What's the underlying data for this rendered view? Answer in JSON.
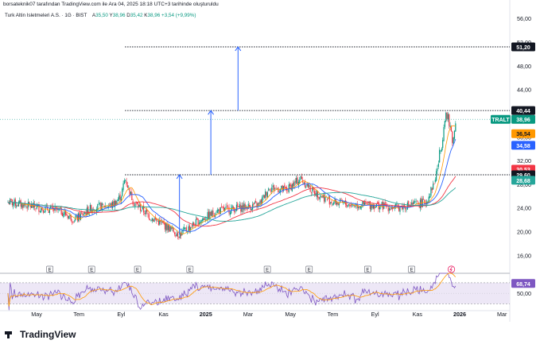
{
  "header": {
    "attribution": "borsateknik07 tarafından TradingView.com ile Ara 04, 2025 18:18 UTC+3 tarihinde oluşturuldu",
    "symbol_line": "Turk Altin Isletmeleri A.S. · 1G · BIST",
    "ohlc": {
      "a_label": "A",
      "a": "35,50",
      "y_label": "Y",
      "y": "38,96",
      "d_label": "D",
      "d": "35,42",
      "k_label": "K",
      "k": "38,96",
      "change": "+3,54 (+9,99%)"
    }
  },
  "brand": {
    "name": "TradingView"
  },
  "colors": {
    "up": "#089981",
    "down": "#f23645",
    "ma_red": "#f23645",
    "ma_blue": "#2962ff",
    "ma_teal": "#26a69a",
    "ma_purple": "#7e57c2",
    "rsi": "#7e57c2",
    "rsi_ma": "#ff9800",
    "arrow": "#2962ff",
    "rsi_band": "#ede7f6"
  },
  "chart_data": {
    "type": "candlestick",
    "price_axis": {
      "ticks": [
        "56,00",
        "52,00",
        "48,00",
        "44,00",
        "40,00",
        "36,00",
        "32,00",
        "28,00",
        "24,00",
        "20,00",
        "16,00"
      ],
      "range": [
        13.5,
        57.5
      ]
    },
    "time_axis": {
      "labels": [
        "May",
        "Tem",
        "Eyl",
        "Kas",
        "2025",
        "Mar",
        "May",
        "Tem",
        "Eyl",
        "Kas",
        "2026",
        "Mar"
      ],
      "bold": [
        "2025",
        "2026"
      ]
    },
    "price_labels": [
      {
        "text": "51,20",
        "value": 51.2,
        "style": "black"
      },
      {
        "text": "40,44",
        "value": 40.44,
        "style": "black"
      },
      {
        "text": "TRALT",
        "value": 38.96,
        "style": "teal_tag"
      },
      {
        "text": "38,96",
        "value": 38.96,
        "style": "teal"
      },
      {
        "text": "36,54",
        "value": 36.54,
        "style": "orange"
      },
      {
        "text": "34,58",
        "value": 34.58,
        "style": "blue"
      },
      {
        "text": "30,53",
        "value": 30.53,
        "style": "red"
      },
      {
        "text": "29,60",
        "value": 29.6,
        "style": "black"
      },
      {
        "text": "28,68",
        "value": 28.68,
        "style": "tealdark"
      }
    ],
    "levels": [
      {
        "value": 51.2,
        "from_month": 5.6
      },
      {
        "value": 40.44,
        "from_month": 5.6
      },
      {
        "value": 29.6,
        "from_month": 5.6
      }
    ],
    "arrows": [
      {
        "month": 8.2,
        "from": 19.5,
        "to": 29.6
      },
      {
        "month": 9.7,
        "from": 29.6,
        "to": 40.44
      },
      {
        "month": 11.0,
        "from": 40.44,
        "to": 51.2
      }
    ],
    "earnings_markers": {
      "label": "E",
      "months": [
        2.0,
        4.0,
        6.2,
        8.7,
        12.4,
        14.4,
        17.2,
        19.3
      ],
      "special_month": 21.2
    },
    "rsi": {
      "value_label": "68,74",
      "value": 68.74,
      "tick": "50,00",
      "band": [
        30,
        70
      ]
    }
  }
}
